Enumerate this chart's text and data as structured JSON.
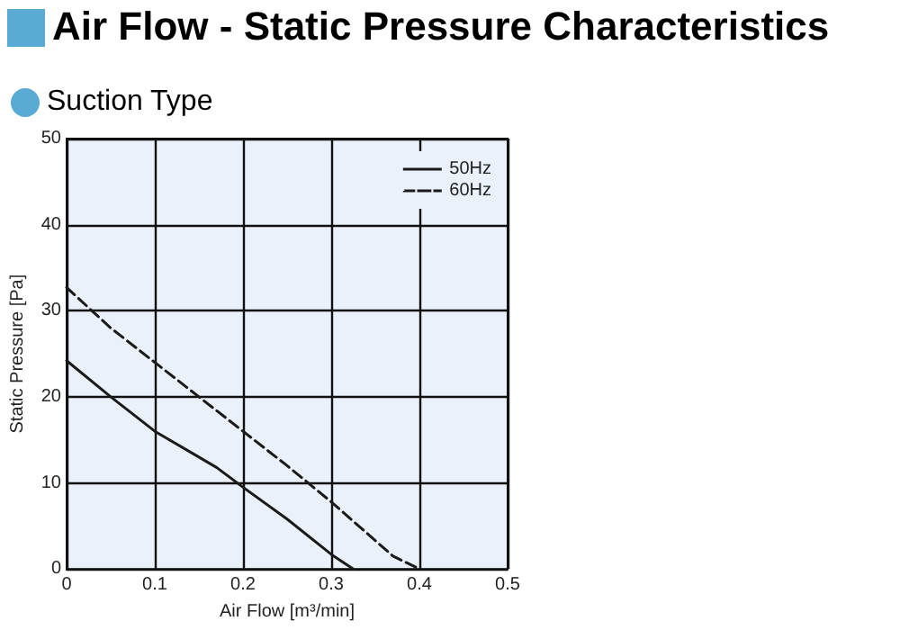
{
  "chart_data": {
    "type": "line",
    "title": "Air Flow - Static Pressure Characteristics",
    "subtitle": "Suction Type",
    "xlabel": "Air Flow [m³/min]",
    "ylabel": "Static Pressure [Pa]",
    "xlim": [
      0,
      0.5
    ],
    "xticks": [
      0,
      0.1,
      0.2,
      0.3,
      0.4,
      0.5
    ],
    "ylim": [
      0,
      50
    ],
    "yticks": [
      0,
      10,
      20,
      30,
      40,
      50
    ],
    "grid": true,
    "legend": "top right",
    "marker": "none",
    "series": [
      {
        "name": "50Hz",
        "color": "#1a1a1a",
        "line_style": "solid",
        "x": [
          0,
          0.05,
          0.1,
          0.15,
          0.17,
          0.2,
          0.25,
          0.3,
          0.325
        ],
        "values": [
          24.2,
          20,
          16,
          13,
          11.8,
          9.5,
          5.8,
          1.7,
          0
        ]
      },
      {
        "name": "60Hz",
        "color": "#1a1a1a",
        "line_style": "dashed",
        "x": [
          0,
          0.05,
          0.1,
          0.15,
          0.2,
          0.25,
          0.3,
          0.35,
          0.37,
          0.4
        ],
        "values": [
          32.7,
          28,
          24,
          20,
          16,
          12,
          7.8,
          3.3,
          1.5,
          0
        ]
      }
    ]
  }
}
